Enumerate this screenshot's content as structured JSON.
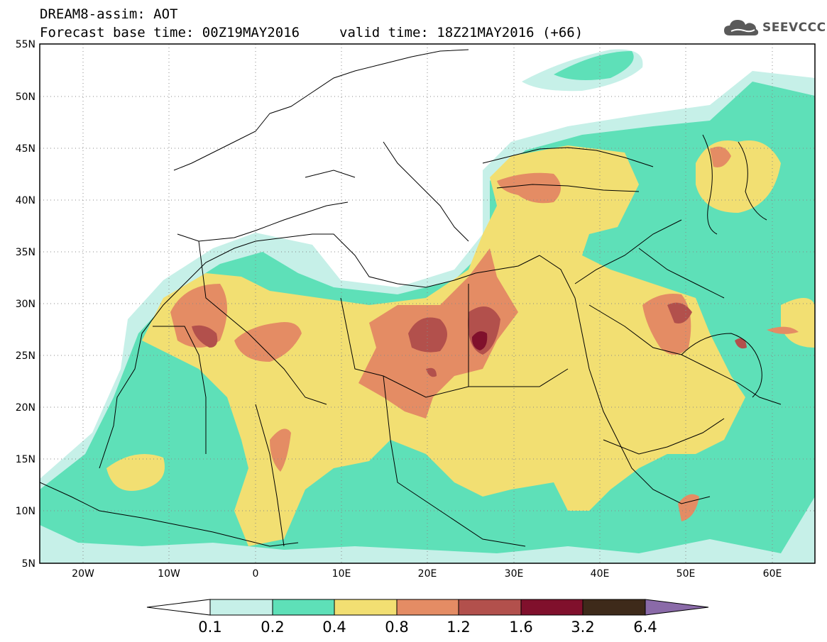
{
  "header": {
    "title": "DREAM8-assim: AOT",
    "base_time": "Forecast base time: 00Z19MAY2016",
    "valid_time": "valid time: 18Z21MAY2016 (+66)"
  },
  "logo": {
    "text": "SEEVCCC",
    "icon": "cloud-icon"
  },
  "map": {
    "lat_labels": [
      "55N",
      "50N",
      "45N",
      "40N",
      "35N",
      "30N",
      "25N",
      "20N",
      "15N",
      "10N",
      "5N"
    ],
    "lon_labels": [
      "20W",
      "10W",
      "0",
      "10E",
      "20E",
      "30E",
      "40E",
      "50E",
      "60E"
    ],
    "lat_range": [
      5,
      55
    ],
    "lon_range": [
      -25,
      65
    ],
    "grid": "dotted"
  },
  "colorbar": {
    "levels": [
      "0.1",
      "0.2",
      "0.4",
      "0.8",
      "1.2",
      "1.6",
      "3.2",
      "6.4"
    ],
    "colors": [
      "#ffffff",
      "#c6f0e8",
      "#5ee0b8",
      "#f2df72",
      "#e48c64",
      "#b2504c",
      "#80102c",
      "#3e2a1a",
      "#8a6aa8"
    ]
  }
}
